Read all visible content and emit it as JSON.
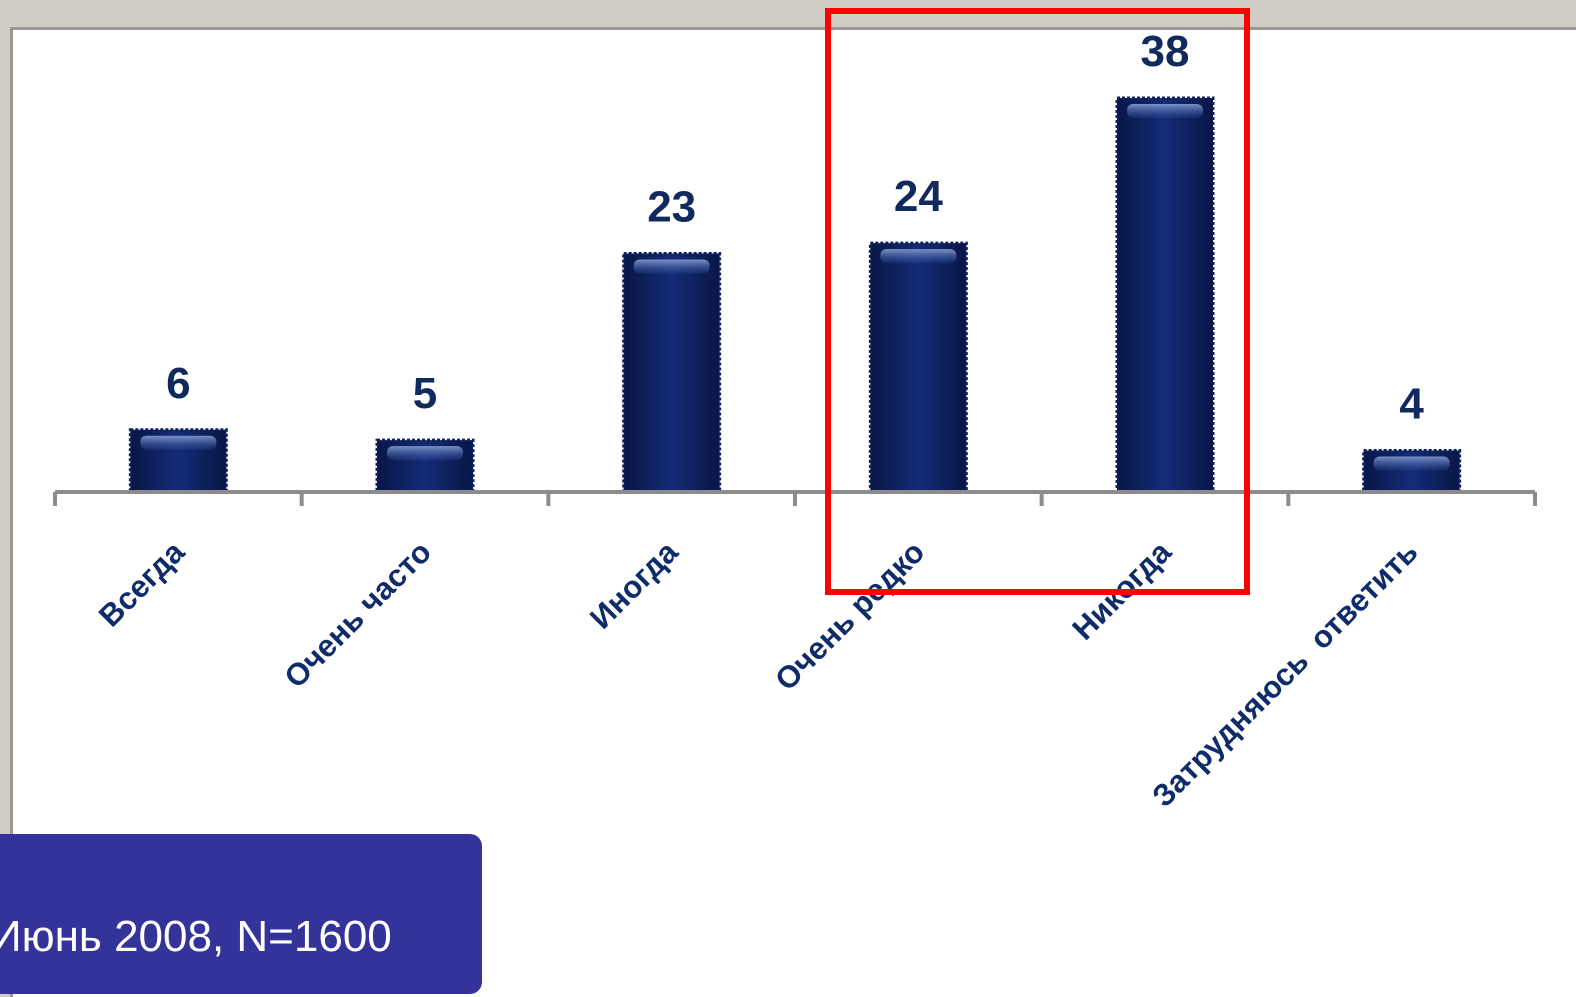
{
  "chart_data": {
    "type": "bar",
    "categories": [
      "Всегда",
      "Очень часто",
      "Иногда",
      "Очень редко",
      "Никогда",
      "Затрудняюсь  ответить"
    ],
    "values": [
      6,
      5,
      23,
      24,
      38,
      4
    ],
    "title": "",
    "xlabel": "",
    "ylabel": "",
    "ylim": [
      0,
      38
    ],
    "grid": false,
    "bar_color": "#0d1f5c",
    "label_color": "#102a5e",
    "highlight": {
      "categories": [
        "Очень редко",
        "Никогда"
      ],
      "color": "#ff0000"
    }
  },
  "source": {
    "text": "Июнь 2008, N=1600",
    "background": "#34339a"
  }
}
